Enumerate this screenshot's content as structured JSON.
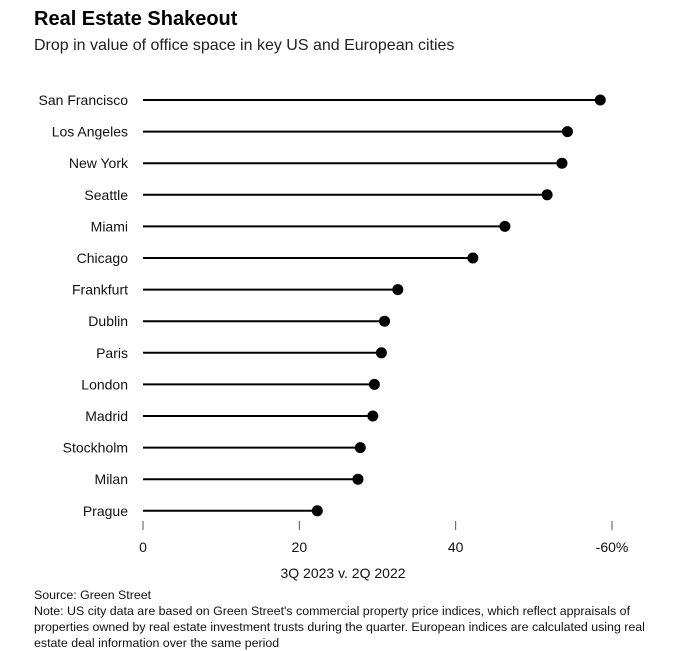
{
  "header": {
    "title": "Real Estate Shakeout",
    "subtitle": "Drop in value of office space in key US and European cities"
  },
  "footer": {
    "source": "Source: Green Street",
    "note": "Note: US city data are based on Green Street's commercial property price indices, which reflect appraisals of properties owned by real estate investment trusts during the quarter. European indices are calculated using real estate deal information over the same period"
  },
  "chart_data": {
    "type": "lollipop",
    "title": "Real Estate Shakeout",
    "subtitle": "Drop in value of office space in key US and European cities",
    "xlabel": "3Q 2023 v. 2Q 2022",
    "xlim": [
      0,
      60
    ],
    "xticks": [
      0,
      20,
      40,
      60
    ],
    "xtick_labels": [
      "0",
      "20",
      "40",
      "-60%"
    ],
    "grid": false,
    "categories": [
      "San Francisco",
      "Los Angeles",
      "New York",
      "Seattle",
      "Miami",
      "Chicago",
      "Frankfurt",
      "Dublin",
      "Paris",
      "London",
      "Madrid",
      "Stockholm",
      "Milan",
      "Prague"
    ],
    "values": [
      58.5,
      54.3,
      53.6,
      51.7,
      46.3,
      42.2,
      32.6,
      30.9,
      30.5,
      29.6,
      29.4,
      27.8,
      27.5,
      22.3
    ],
    "colors": {
      "line": "#000000",
      "dot": "#000000"
    }
  }
}
